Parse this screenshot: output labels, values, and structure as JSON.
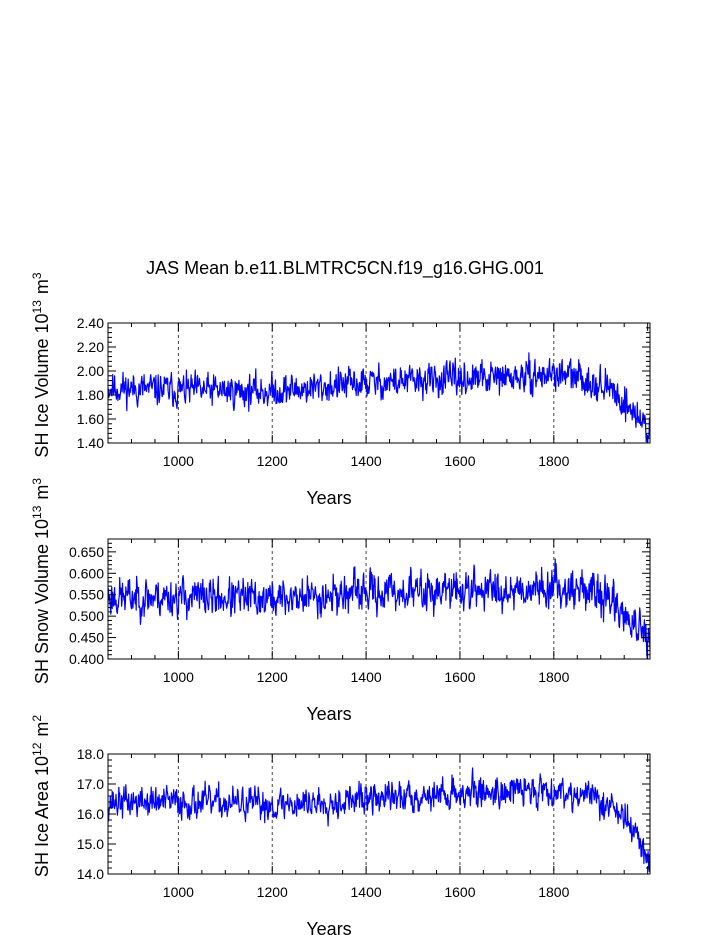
{
  "figure": {
    "title": "JAS Mean b.e11.BLMTRC5CN.f19_g16.GHG.001",
    "line_color": "#0000ff"
  },
  "chart_data": [
    {
      "type": "line",
      "ylabel_main": "SH Ice Volume 10",
      "ylabel_exp": "13",
      "ylabel_unit": "m",
      "ylabel_unit_exp": "3",
      "xlabel": "Years",
      "xlim": [
        850,
        2005
      ],
      "ylim": [
        1.4,
        2.4
      ],
      "yticks": [
        1.4,
        1.6,
        1.8,
        2.0,
        2.2,
        2.4
      ],
      "ytick_labels": [
        "1.40",
        "1.60",
        "1.80",
        "2.00",
        "2.20",
        "2.40"
      ],
      "xticks": [
        1000,
        1200,
        1400,
        1600,
        1800
      ],
      "xtick_labels": [
        "1000",
        "1200",
        "1400",
        "1600",
        "1800"
      ],
      "gridlines_x": [
        1000,
        1200,
        1400,
        1600,
        1800
      ],
      "series": [
        {
          "name": "SH Ice Volume",
          "base": 1.87,
          "amp": 0.09,
          "trend": [
            [
              850,
              1.86
            ],
            [
              1000,
              1.84
            ],
            [
              1200,
              1.83
            ],
            [
              1400,
              1.9
            ],
            [
              1600,
              1.93
            ],
            [
              1750,
              1.95
            ],
            [
              1800,
              1.98
            ],
            [
              1880,
              1.92
            ],
            [
              1930,
              1.82
            ],
            [
              1960,
              1.7
            ],
            [
              2005,
              1.5
            ]
          ],
          "seed": 11
        }
      ]
    },
    {
      "type": "line",
      "ylabel_main": "SH Snow Volume 10",
      "ylabel_exp": "13",
      "ylabel_unit": "m",
      "ylabel_unit_exp": "3",
      "xlabel": "Years",
      "xlim": [
        850,
        2005
      ],
      "ylim": [
        0.4,
        0.68
      ],
      "yticks": [
        0.4,
        0.45,
        0.5,
        0.55,
        0.6,
        0.65
      ],
      "ytick_labels": [
        "0.400",
        "0.450",
        "0.500",
        "0.550",
        "0.600",
        "0.650"
      ],
      "xticks": [
        1000,
        1200,
        1400,
        1600,
        1800
      ],
      "xtick_labels": [
        "1000",
        "1200",
        "1400",
        "1600",
        "1800"
      ],
      "gridlines_x": [
        1000,
        1200,
        1400,
        1600,
        1800
      ],
      "series": [
        {
          "name": "SH Snow Volume",
          "base": 0.55,
          "amp": 0.03,
          "trend": [
            [
              850,
              0.545
            ],
            [
              1000,
              0.545
            ],
            [
              1200,
              0.54
            ],
            [
              1400,
              0.555
            ],
            [
              1600,
              0.56
            ],
            [
              1750,
              0.565
            ],
            [
              1800,
              0.57
            ],
            [
              1880,
              0.56
            ],
            [
              1930,
              0.53
            ],
            [
              1970,
              0.48
            ],
            [
              2005,
              0.43
            ]
          ],
          "seed": 23
        }
      ]
    },
    {
      "type": "line",
      "ylabel_main": "SH Ice Area 10",
      "ylabel_exp": "12",
      "ylabel_unit": "m",
      "ylabel_unit_exp": "2",
      "xlabel": "Years",
      "xlim": [
        850,
        2005
      ],
      "ylim": [
        14.0,
        18.0
      ],
      "yticks": [
        14.0,
        15.0,
        16.0,
        17.0,
        18.0
      ],
      "ytick_labels": [
        "14.0",
        "15.0",
        "16.0",
        "17.0",
        "18.0"
      ],
      "xticks": [
        1000,
        1200,
        1400,
        1600,
        1800
      ],
      "xtick_labels": [
        "1000",
        "1200",
        "1400",
        "1600",
        "1800"
      ],
      "gridlines_x": [
        1000,
        1200,
        1400,
        1600,
        1800
      ],
      "series": [
        {
          "name": "SH Ice Area",
          "base": 16.4,
          "amp": 0.35,
          "trend": [
            [
              850,
              16.4
            ],
            [
              1000,
              16.4
            ],
            [
              1200,
              16.3
            ],
            [
              1400,
              16.5
            ],
            [
              1600,
              16.7
            ],
            [
              1750,
              16.8
            ],
            [
              1800,
              16.8
            ],
            [
              1880,
              16.6
            ],
            [
              1930,
              16.2
            ],
            [
              1970,
              15.5
            ],
            [
              2005,
              14.3
            ]
          ],
          "seed": 37
        }
      ]
    }
  ]
}
